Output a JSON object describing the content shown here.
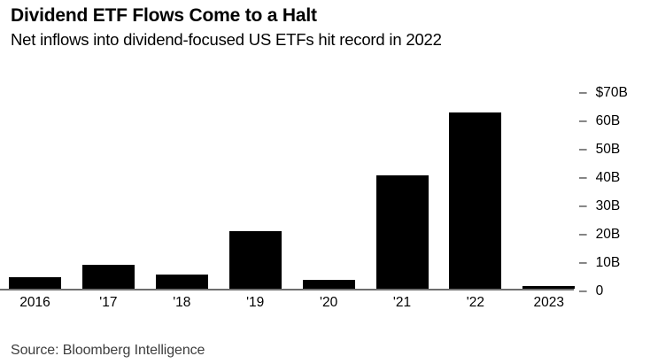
{
  "header": {
    "title": "Dividend ETF Flows Come to a Halt",
    "subtitle": "Net inflows into dividend-focused US ETFs hit record in 2022"
  },
  "footer": {
    "source": "Source: Bloomberg Intelligence"
  },
  "colors": {
    "bar": "#000000",
    "axis_line": "#6e6e6e",
    "text": "#000000",
    "source_text": "#3d3d3d",
    "background": "#ffffff"
  },
  "chart_data": {
    "type": "bar",
    "title": "Dividend ETF Flows Come to a Halt",
    "subtitle": "Net inflows into dividend-focused US ETFs hit record in 2022",
    "categories": [
      "2016",
      "'17",
      "'18",
      "'19",
      "'20",
      "'21",
      "'22",
      "2023"
    ],
    "values": [
      4,
      8.4,
      5,
      20.5,
      3,
      40.2,
      62.3,
      0.9
    ],
    "unit": "billions of US dollars",
    "xlabel": "",
    "ylabel": "",
    "ylim": [
      0,
      70
    ],
    "yticks": [
      0,
      10,
      20,
      30,
      40,
      50,
      60,
      70
    ],
    "ytick_labels": [
      "0",
      "10B",
      "20B",
      "30B",
      "40B",
      "50B",
      "60B",
      "$70B"
    ],
    "y_axis_side": "right",
    "grid": false,
    "legend": false,
    "bar_color": "#000000",
    "source": "Source: Bloomberg Intelligence"
  }
}
